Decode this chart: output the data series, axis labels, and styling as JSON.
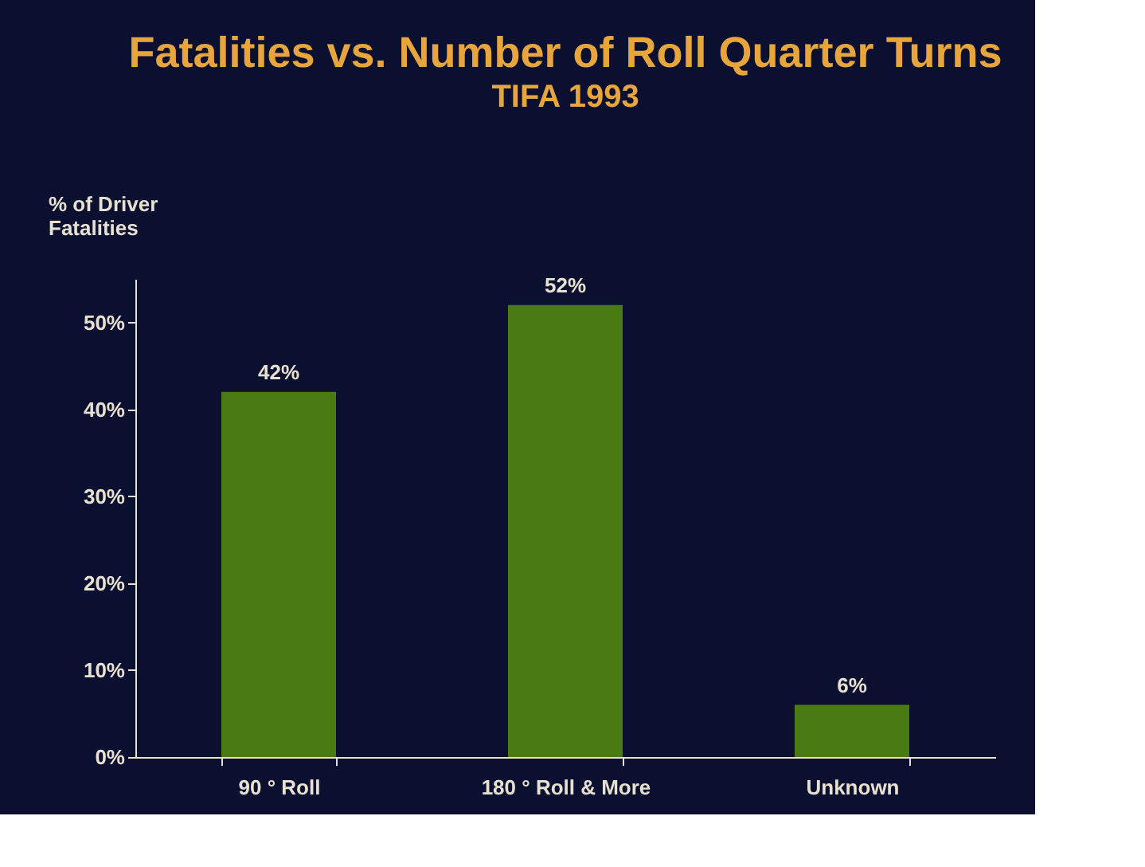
{
  "chart_data": {
    "type": "bar",
    "title": "Fatalities vs. Number of Roll Quarter Turns",
    "subtitle": "TIFA 1993",
    "ylabel": "% of Driver\nFatalities",
    "categories": [
      "90 ° Roll",
      "180 ° Roll & More",
      "Unknown"
    ],
    "values": [
      42,
      52,
      6
    ],
    "value_labels": [
      "42%",
      "52%",
      "6%"
    ],
    "color": "#4a7a12",
    "ylim": [
      0,
      55
    ],
    "yticks": [
      {
        "value": 0,
        "label": "0%"
      },
      {
        "value": 10,
        "label": "10%"
      },
      {
        "value": 20,
        "label": "20%"
      },
      {
        "value": 30,
        "label": "30%"
      },
      {
        "value": 40,
        "label": "40%"
      },
      {
        "value": 50,
        "label": "50%"
      }
    ],
    "grid": false
  }
}
